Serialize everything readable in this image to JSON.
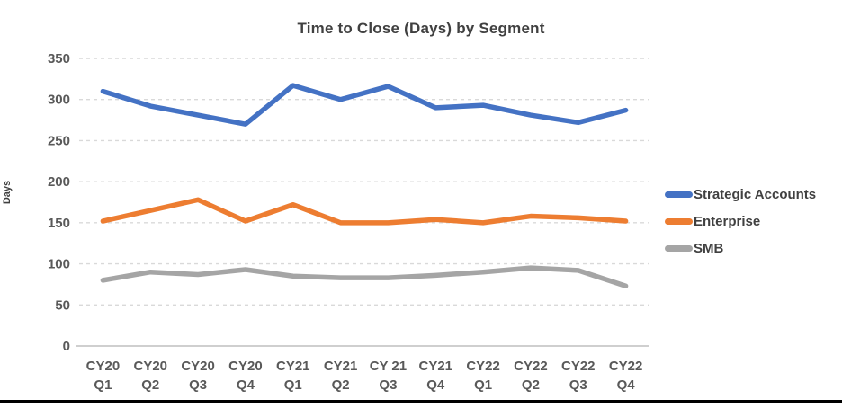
{
  "chart_data": {
    "type": "line",
    "title": "Time to Close (Days) by Segment",
    "xlabel": "",
    "ylabel": "Days",
    "categories": [
      [
        "CY20",
        "Q1"
      ],
      [
        "CY20",
        "Q2"
      ],
      [
        "CY20",
        "Q3"
      ],
      [
        "CY20",
        "Q4"
      ],
      [
        "CY21",
        "Q1"
      ],
      [
        "CY21",
        "Q2"
      ],
      [
        "CY 21",
        "Q3"
      ],
      [
        "CY21",
        "Q4"
      ],
      [
        "CY22",
        "Q1"
      ],
      [
        "CY22",
        "Q2"
      ],
      [
        "CY22",
        "Q3"
      ],
      [
        "CY22",
        "Q4"
      ]
    ],
    "series": [
      {
        "name": "Strategic Accounts",
        "color": "#4472C4",
        "values": [
          310,
          292,
          281,
          270,
          317,
          300,
          316,
          290,
          293,
          281,
          272,
          287
        ]
      },
      {
        "name": "Enterprise",
        "color": "#ED7D31",
        "values": [
          152,
          165,
          178,
          152,
          172,
          150,
          150,
          154,
          150,
          158,
          156,
          152
        ]
      },
      {
        "name": "SMB",
        "color": "#A5A5A5",
        "values": [
          80,
          90,
          87,
          93,
          85,
          83,
          83,
          86,
          90,
          95,
          92,
          73
        ]
      }
    ],
    "y_ticks": [
      0,
      50,
      100,
      150,
      200,
      250,
      300,
      350
    ],
    "ylim": [
      0,
      350
    ],
    "grid": "horizontal-dashed",
    "gridline_color": "#D9D9D9",
    "axis_line_color": "#BFBFBF",
    "tick_label_color": "#595959",
    "title_color": "#404040",
    "legend_position": "right"
  }
}
